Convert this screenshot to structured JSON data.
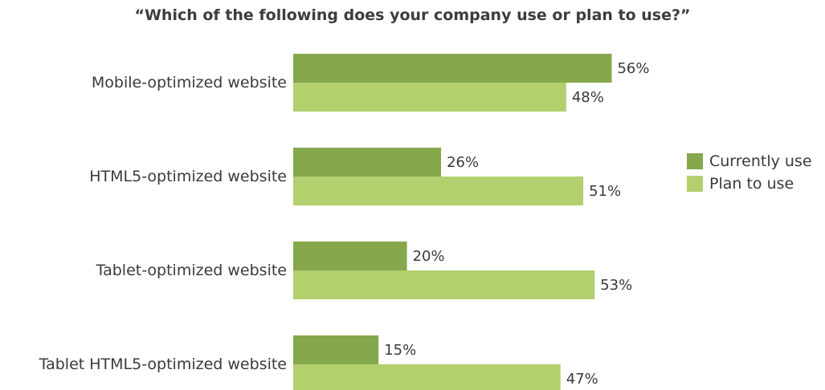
{
  "chart_data": {
    "type": "bar",
    "orientation": "horizontal",
    "title": "“Which of the following does your company use or plan to use?”",
    "categories": [
      "Mobile-optimized website",
      "HTML5-optimized website",
      "Tablet-optimized website",
      "Tablet HTML5-optimized website"
    ],
    "series": [
      {
        "name": "Currently use",
        "values": [
          56,
          26,
          20,
          15
        ],
        "labels": [
          "56%",
          "26%",
          "20%",
          "15%"
        ],
        "color": "#85a84c"
      },
      {
        "name": "Plan to use",
        "values": [
          48,
          51,
          53,
          47
        ],
        "labels": [
          "48%",
          "51%",
          "53%",
          "47%"
        ],
        "color": "#b3cf6e"
      }
    ],
    "value_unit": "%",
    "xlim": [
      0,
      100
    ],
    "grid": false,
    "legend_position": "right"
  }
}
